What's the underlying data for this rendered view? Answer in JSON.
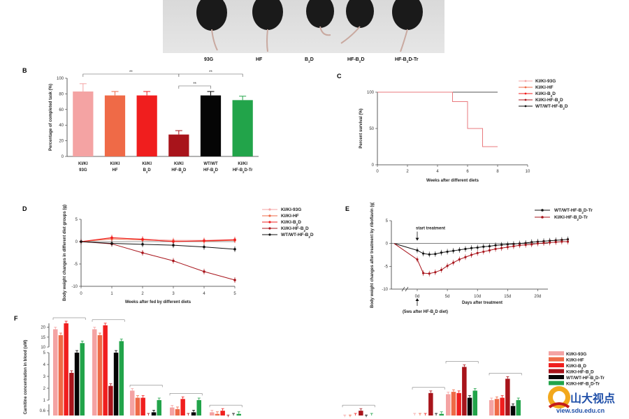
{
  "panelA": {
    "labels": [
      "93G",
      "HF",
      "B2D",
      "HF-B2D",
      "HF-B2D-Tr"
    ]
  },
  "chart_data": [
    {
      "panel": "B",
      "type": "bar",
      "ylabel": "Percentage of completed task (%)",
      "ylim": [
        0,
        100
      ],
      "yticks": [
        "0",
        "20",
        "40",
        "60",
        "80",
        "100"
      ],
      "categories": [
        [
          "KI/KI",
          "93G"
        ],
        [
          "KI/KI",
          "HF"
        ],
        [
          "KI/KI",
          "B2D"
        ],
        [
          "KI/KI",
          "HF-B2D"
        ],
        [
          "WT/WT",
          "HF-B2D"
        ],
        [
          "KI/KI",
          "HF-B2D-Tr"
        ]
      ],
      "values": [
        83,
        78,
        78,
        28,
        78,
        72
      ],
      "errors": [
        10,
        5,
        5,
        5,
        5,
        5
      ],
      "colors": [
        "#f4a3a3",
        "#ef6a47",
        "#f01e1e",
        "#a8141b",
        "#050505",
        "#22a44a"
      ],
      "significance": [
        "**",
        "**",
        "**"
      ]
    },
    {
      "panel": "C",
      "type": "line",
      "xlabel": "Weeks after different diets",
      "ylabel": "Percent survival (%)",
      "xlim": [
        0,
        10
      ],
      "ylim": [
        0,
        100
      ],
      "xticks": [
        "0",
        "2",
        "4",
        "6",
        "8",
        "10"
      ],
      "yticks": [
        "0",
        "50",
        "100"
      ],
      "legend": [
        "KI/KI-93G",
        "KI/KI-HF",
        "KI/KI-B2D",
        "KI/KI-HF-B2D",
        "WT/WT-HF-B2D"
      ],
      "series": [
        {
          "name": "WT/WT-HF-B2D",
          "color": "#555555",
          "points": [
            [
              0,
              100
            ],
            [
              8,
              100
            ]
          ]
        },
        {
          "name": "KI/KI-HF-B2D",
          "color": "#e9797d",
          "points": [
            [
              0,
              100
            ],
            [
              5,
              100
            ],
            [
              5,
              87
            ],
            [
              6,
              87
            ],
            [
              6,
              50
            ],
            [
              7,
              50
            ],
            [
              7,
              25
            ],
            [
              8,
              25
            ]
          ]
        }
      ]
    },
    {
      "panel": "D",
      "type": "line",
      "xlabel": "Weeks after fed by different diets",
      "ylabel": "Body weight changes in different diet groups (g)",
      "xlim": [
        0,
        5
      ],
      "ylim": [
        -10,
        5
      ],
      "xticks": [
        "0",
        "1",
        "2",
        "3",
        "4",
        "5"
      ],
      "yticks": [
        "5",
        "0",
        "-5",
        "-10"
      ],
      "legend": [
        "KI/KI-93G",
        "KI/KI-HF",
        "KI/KI-B2D",
        "KI/KI-HF-B2D",
        "WT/WT-HF-B2D"
      ],
      "series": [
        {
          "name": "KI/KI-93G",
          "color": "#f4a3a3",
          "values": [
            0,
            0.8,
            0.6,
            0.3,
            0.3,
            0.5
          ]
        },
        {
          "name": "KI/KI-HF",
          "color": "#ef6a47",
          "values": [
            0,
            0.6,
            0.4,
            0.1,
            0.1,
            0.3
          ]
        },
        {
          "name": "KI/KI-B2D",
          "color": "#f01e1e",
          "values": [
            0,
            0.9,
            0.5,
            0.0,
            0.2,
            0.4
          ]
        },
        {
          "name": "KI/KI-HF-B2D",
          "color": "#a8141b",
          "values": [
            0,
            -0.5,
            -2.5,
            -4.3,
            -6.7,
            -8.6
          ]
        },
        {
          "name": "WT/WT-HF-B2D",
          "color": "#111111",
          "values": [
            0,
            -0.4,
            -0.6,
            -0.8,
            -1.2,
            -1.7
          ]
        }
      ]
    },
    {
      "panel": "E",
      "type": "line",
      "xlabel": "Days after treatment",
      "ylabel": "Body weight changes after treatment by riboflavin (g)",
      "ylim": [
        -10,
        5
      ],
      "xticks": [
        "0d",
        "5d",
        "10d",
        "15d",
        "20d"
      ],
      "yticks": [
        "5",
        "0",
        "-5",
        "-10"
      ],
      "annotations": [
        "start treatment",
        "(5ws after HF-B2D diet)"
      ],
      "legend": [
        "WT/WT-HF-B2D-Tr",
        "KI/KI-HF-B2D-Tr"
      ],
      "series": [
        {
          "name": "WT/WT-HF-B2D-Tr",
          "color": "#111111",
          "values": [
            0,
            -1.5,
            -2.2,
            -2.4,
            -2.3,
            -2.0,
            -1.8,
            -1.6,
            -1.4,
            -1.2,
            -1.0,
            -0.9,
            -0.7,
            -0.6,
            -0.4,
            -0.3,
            -0.2,
            -0.1,
            0.0,
            0.1,
            0.3,
            0.4,
            0.5,
            0.6,
            0.7,
            0.8,
            0.9
          ]
        },
        {
          "name": "KI/KI-HF-B2D-Tr",
          "color": "#a8141b",
          "values": [
            0,
            -3.5,
            -6.5,
            -6.6,
            -6.3,
            -5.8,
            -4.9,
            -4.2,
            -3.5,
            -3.0,
            -2.5,
            -2.1,
            -1.8,
            -1.5,
            -1.2,
            -1.0,
            -0.8,
            -0.6,
            -0.4,
            -0.3,
            -0.2,
            0.0,
            0.1,
            0.2,
            0.3,
            0.4,
            0.4
          ]
        }
      ]
    },
    {
      "panel": "F",
      "type": "bar",
      "ylabel": "Carnitine concentration in blood (uM)",
      "yticks": [
        "0.6",
        "1",
        "2",
        "3",
        "4",
        "5",
        "10",
        "15",
        "20"
      ],
      "legend": [
        "KI/KI-93G",
        "KI/KI-HF",
        "KI/KI-B2D",
        "KI/KI-HF-B2D",
        "WT/WT-HF-B2D-Tr",
        "KI/KI-HF-B2D-Tr"
      ],
      "colors": [
        "#f4a3a3",
        "#ef6a47",
        "#f01e1e",
        "#a8141b",
        "#050505",
        "#22a44a"
      ],
      "groups": [
        {
          "values": [
            19,
            16,
            22,
            3.3,
            6.0,
            12
          ]
        },
        {
          "values": [
            19,
            16,
            21,
            2.2,
            6.0,
            13
          ]
        },
        {
          "values": [
            1.8,
            1.2,
            1.2,
            0.3,
            0.5,
            1.0
          ]
        },
        {
          "values": [
            0.8,
            0.7,
            1.1,
            0.3,
            0.5,
            1.0
          ]
        },
        {
          "values": [
            0.5,
            0.4,
            0.6,
            0.2,
            0.3,
            0.4
          ]
        },
        {
          "values": [
            0.2,
            0.2,
            0.3,
            0.6,
            0.2,
            0.3
          ]
        },
        {
          "values": [
            0.3,
            0.3,
            0.3,
            1.6,
            0.3,
            0.4
          ]
        },
        {
          "values": [
            1.5,
            1.7,
            1.6,
            3.8,
            1.2,
            1.8
          ]
        },
        {
          "values": [
            1.0,
            1.1,
            1.2,
            2.8,
            0.9,
            1.0
          ]
        }
      ]
    }
  ],
  "watermark": {
    "text": "山大视点",
    "url": "view.sdu.edu.cn"
  }
}
